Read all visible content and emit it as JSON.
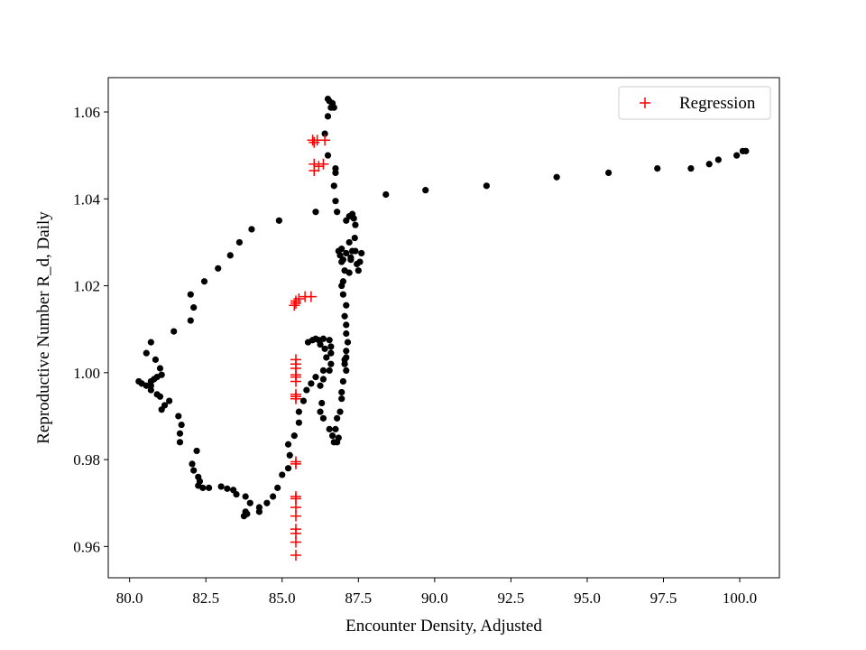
{
  "chart_data": {
    "type": "scatter",
    "title": "",
    "xlabel": "Encounter Density, Adjusted",
    "ylabel": "Reproductive Number R_d, Daily",
    "xlim": [
      79.3,
      101.3
    ],
    "ylim": [
      0.9528,
      1.0679
    ],
    "xticks": [
      "80.0",
      "82.5",
      "85.0",
      "87.5",
      "90.0",
      "92.5",
      "95.0",
      "97.5",
      "100.0"
    ],
    "yticks": [
      "0.96",
      "0.98",
      "1.00",
      "1.02",
      "1.04",
      "1.06"
    ],
    "grid": false,
    "legend": {
      "location": "top-right",
      "entries": [
        "Regression"
      ]
    },
    "series": [
      {
        "marker": "dot",
        "color": "#000000",
        "points": [
          [
            100.2,
            1.051
          ],
          [
            100.1,
            1.051
          ],
          [
            99.9,
            1.05
          ],
          [
            99.3,
            1.049
          ],
          [
            99.0,
            1.048
          ],
          [
            98.4,
            1.047
          ],
          [
            97.3,
            1.047
          ],
          [
            95.7,
            1.046
          ],
          [
            94.0,
            1.045
          ],
          [
            91.7,
            1.043
          ],
          [
            89.7,
            1.042
          ],
          [
            88.4,
            1.041
          ],
          [
            87.6,
            1.0275
          ],
          [
            87.55,
            1.0255
          ],
          [
            87.5,
            1.0235
          ],
          [
            87.45,
            1.025
          ],
          [
            87.4,
            1.028
          ],
          [
            87.38,
            1.031
          ],
          [
            87.4,
            1.034
          ],
          [
            87.35,
            1.0355
          ],
          [
            87.3,
            1.0365
          ],
          [
            87.2,
            1.036
          ],
          [
            87.1,
            1.035
          ],
          [
            87.2,
            1.03
          ],
          [
            87.3,
            1.028
          ],
          [
            87.25,
            1.026
          ],
          [
            87.2,
            1.023
          ],
          [
            87.0,
            1.021
          ],
          [
            87.0,
            1.026
          ],
          [
            86.9,
            1.027
          ],
          [
            86.85,
            1.028
          ],
          [
            86.8,
            1.037
          ],
          [
            86.75,
            1.0395
          ],
          [
            86.7,
            1.043
          ],
          [
            86.75,
            1.046
          ],
          [
            86.75,
            1.047
          ],
          [
            86.5,
            1.05
          ],
          [
            86.4,
            1.055
          ],
          [
            86.5,
            1.059
          ],
          [
            86.6,
            1.061
          ],
          [
            86.7,
            1.061
          ],
          [
            86.65,
            1.062
          ],
          [
            86.55,
            1.0625
          ],
          [
            86.5,
            1.063
          ],
          [
            86.1,
            1.037
          ],
          [
            84.9,
            1.035
          ],
          [
            84.0,
            1.033
          ],
          [
            83.6,
            1.03
          ],
          [
            83.3,
            1.027
          ],
          [
            82.9,
            1.024
          ],
          [
            82.45,
            1.021
          ],
          [
            82.1,
            1.015
          ],
          [
            82.0,
            1.012
          ],
          [
            82.0,
            1.018
          ],
          [
            81.45,
            1.0095
          ],
          [
            80.7,
            1.007
          ],
          [
            80.55,
            1.0045
          ],
          [
            80.85,
            1.003
          ],
          [
            81.0,
            1.001
          ],
          [
            81.05,
            0.9995
          ],
          [
            80.9,
            0.999
          ],
          [
            80.8,
            0.9985
          ],
          [
            80.7,
            0.998
          ],
          [
            80.7,
            0.997
          ],
          [
            80.55,
            0.997
          ],
          [
            80.4,
            0.9975
          ],
          [
            80.3,
            0.998
          ],
          [
            80.7,
            0.996
          ],
          [
            80.9,
            0.995
          ],
          [
            81.0,
            0.9945
          ],
          [
            81.3,
            0.9935
          ],
          [
            81.15,
            0.9925
          ],
          [
            81.05,
            0.9915
          ],
          [
            81.6,
            0.99
          ],
          [
            81.7,
            0.988
          ],
          [
            81.65,
            0.986
          ],
          [
            81.65,
            0.984
          ],
          [
            82.2,
            0.982
          ],
          [
            82.05,
            0.979
          ],
          [
            82.1,
            0.9775
          ],
          [
            82.25,
            0.976
          ],
          [
            82.3,
            0.975
          ],
          [
            82.25,
            0.974
          ],
          [
            82.4,
            0.9735
          ],
          [
            82.6,
            0.9735
          ],
          [
            83.0,
            0.9738
          ],
          [
            83.2,
            0.9733
          ],
          [
            83.4,
            0.973
          ],
          [
            83.5,
            0.972
          ],
          [
            83.8,
            0.9715
          ],
          [
            83.95,
            0.97
          ],
          [
            83.8,
            0.968
          ],
          [
            83.85,
            0.9675
          ],
          [
            83.75,
            0.967
          ],
          [
            84.25,
            0.969
          ],
          [
            84.25,
            0.968
          ],
          [
            84.5,
            0.97
          ],
          [
            84.7,
            0.9715
          ],
          [
            84.85,
            0.9735
          ],
          [
            85.0,
            0.9765
          ],
          [
            85.2,
            0.978
          ],
          [
            85.25,
            0.981
          ],
          [
            85.2,
            0.9835
          ],
          [
            85.4,
            0.9855
          ],
          [
            85.55,
            0.9885
          ],
          [
            85.55,
            0.991
          ],
          [
            85.7,
            0.9935
          ],
          [
            85.8,
            0.996
          ],
          [
            85.95,
            0.9975
          ],
          [
            86.1,
            0.999
          ],
          [
            86.35,
            1.0005
          ],
          [
            86.45,
            1.0035
          ],
          [
            86.4,
            1.0055
          ],
          [
            86.25,
            1.0065
          ],
          [
            86.2,
            1.0075
          ],
          [
            86.1,
            1.0078
          ],
          [
            86.0,
            1.0075
          ],
          [
            85.85,
            1.007
          ],
          [
            86.35,
            1.0078
          ],
          [
            86.55,
            1.0075
          ],
          [
            86.6,
            1.006
          ],
          [
            86.6,
            1.0045
          ],
          [
            86.6,
            1.002
          ],
          [
            86.55,
            1.0005
          ],
          [
            86.35,
            0.9985
          ],
          [
            86.25,
            0.997
          ],
          [
            86.3,
            0.993
          ],
          [
            86.25,
            0.991
          ],
          [
            86.35,
            0.9895
          ],
          [
            86.55,
            0.987
          ],
          [
            86.65,
            0.9855
          ],
          [
            86.7,
            0.984
          ],
          [
            86.8,
            0.984
          ],
          [
            86.85,
            0.985
          ],
          [
            86.75,
            0.987
          ],
          [
            86.8,
            0.9895
          ],
          [
            86.9,
            0.991
          ],
          [
            86.95,
            0.994
          ],
          [
            86.95,
            0.9955
          ],
          [
            87.0,
            0.998
          ],
          [
            87.1,
            1.0005
          ],
          [
            87.05,
            1.002
          ],
          [
            87.1,
            1.0035
          ],
          [
            87.1,
            1.005
          ],
          [
            87.05,
            1.003
          ],
          [
            87.15,
            1.007
          ],
          [
            87.1,
            1.009
          ],
          [
            87.1,
            1.011
          ],
          [
            87.05,
            1.013
          ],
          [
            87.1,
            1.0155
          ],
          [
            87.0,
            1.018
          ],
          [
            86.95,
            1.02
          ],
          [
            87.05,
            1.0235
          ],
          [
            86.95,
            1.0255
          ],
          [
            86.95,
            1.0285
          ],
          [
            87.1,
            1.0275
          ],
          [
            87.25,
            1.0265
          ]
        ]
      },
      {
        "name": "Regression",
        "marker": "plus",
        "color": "#ff0000",
        "points": [
          [
            86.4,
            1.0535
          ],
          [
            86.0,
            1.0535
          ],
          [
            86.05,
            1.053
          ],
          [
            86.15,
            1.0535
          ],
          [
            86.35,
            1.048
          ],
          [
            86.05,
            1.048
          ],
          [
            86.2,
            1.0475
          ],
          [
            86.05,
            1.0465
          ],
          [
            85.95,
            1.0175
          ],
          [
            85.75,
            1.0175
          ],
          [
            85.55,
            1.017
          ],
          [
            85.45,
            1.0165
          ],
          [
            85.45,
            1.016
          ],
          [
            85.4,
            1.0155
          ],
          [
            85.45,
            1.003
          ],
          [
            85.45,
            1.002
          ],
          [
            85.45,
            1.001
          ],
          [
            85.45,
            0.9995
          ],
          [
            85.45,
            0.999
          ],
          [
            85.45,
            0.998
          ],
          [
            85.45,
            0.995
          ],
          [
            85.45,
            0.9945
          ],
          [
            85.45,
            0.994
          ],
          [
            85.45,
            0.9795
          ],
          [
            85.45,
            0.979
          ],
          [
            85.45,
            0.9715
          ],
          [
            85.45,
            0.971
          ],
          [
            85.45,
            0.969
          ],
          [
            85.45,
            0.967
          ],
          [
            85.45,
            0.964
          ],
          [
            85.45,
            0.963
          ],
          [
            85.45,
            0.961
          ],
          [
            85.45,
            0.958
          ]
        ]
      }
    ]
  }
}
